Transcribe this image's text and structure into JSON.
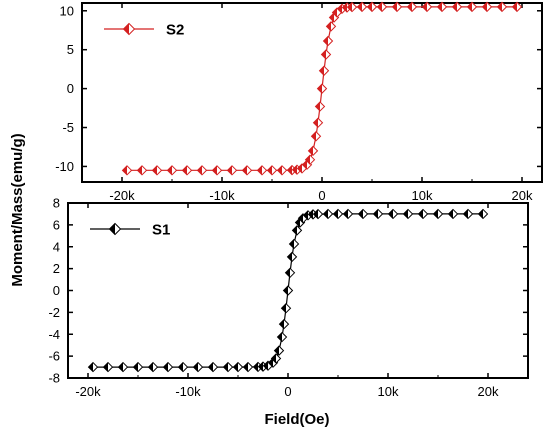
{
  "figure": {
    "ylabel": "Moment/Mass(emu/g)",
    "xlabel": "Field(Oe)"
  },
  "chart_data": [
    {
      "type": "scatter",
      "panel": "top",
      "line_color": "#d42020",
      "marker_fill": "#d42020",
      "xlim": [
        -24000,
        22000
      ],
      "ylim": [
        -12,
        11
      ],
      "xticks": [
        -20000,
        -10000,
        0,
        10000,
        20000
      ],
      "xtick_labels": [
        "-20k",
        "-10k",
        "0",
        "10k",
        "20k"
      ],
      "yticks": [
        -10,
        -5,
        0,
        5,
        10
      ],
      "ytick_labels": [
        "-10",
        "-5",
        "0",
        "5",
        "10"
      ],
      "legend": {
        "label": "S2",
        "placement": "top-left"
      },
      "series": [
        {
          "name": "S2",
          "ms": 10.5,
          "h0": 900,
          "x": [
            -19500,
            -18000,
            -16500,
            -15000,
            -13500,
            -12000,
            -10500,
            -9000,
            -7500,
            -6000,
            -5000,
            -4000,
            -3000,
            -2500,
            -2000,
            -1500,
            -1200,
            -900,
            -600,
            -400,
            -200,
            0,
            200,
            400,
            600,
            900,
            1200,
            1500,
            2000,
            2500,
            3000,
            4000,
            5000,
            6000,
            7500,
            9000,
            10500,
            12000,
            13500,
            15000,
            16500,
            18000,
            19500
          ]
        }
      ]
    },
    {
      "type": "scatter",
      "panel": "bottom",
      "line_color": "#000000",
      "marker_fill": "#000000",
      "xlim": [
        -22000,
        24000
      ],
      "ylim": [
        -8,
        8
      ],
      "xticks": [
        -20000,
        -10000,
        0,
        10000,
        20000
      ],
      "xtick_labels": [
        "-20k",
        "-10k",
        "0",
        "10k",
        "20k"
      ],
      "yticks": [
        -8,
        -6,
        -4,
        -2,
        0,
        2,
        4,
        6,
        8
      ],
      "ytick_labels": [
        "-8",
        "-6",
        "-4",
        "-2",
        "0",
        "2",
        "4",
        "6",
        "8"
      ],
      "legend": {
        "label": "S1",
        "placement": "top-left"
      },
      "series": [
        {
          "name": "S1",
          "ms": 7.0,
          "h0": 850,
          "x": [
            -19500,
            -18000,
            -16500,
            -15000,
            -13500,
            -12000,
            -10500,
            -9000,
            -7500,
            -6000,
            -5000,
            -4000,
            -3000,
            -2500,
            -2000,
            -1500,
            -1200,
            -900,
            -600,
            -400,
            -200,
            0,
            200,
            400,
            600,
            900,
            1200,
            1500,
            2000,
            2500,
            3000,
            4000,
            5000,
            6000,
            7500,
            9000,
            10500,
            12000,
            13500,
            15000,
            16500,
            18000,
            19500
          ]
        }
      ]
    }
  ]
}
